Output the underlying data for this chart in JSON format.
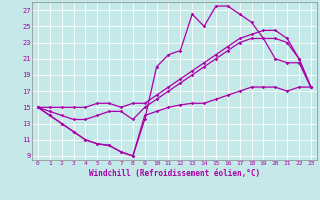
{
  "xlabel": "Windchill (Refroidissement éolien,°C)",
  "bg_color": "#c5e8e8",
  "line_color": "#aa00aa",
  "grid_color": "#ffffff",
  "xlim": [
    -0.5,
    23.5
  ],
  "ylim": [
    8.5,
    28.0
  ],
  "yticks": [
    9,
    11,
    13,
    15,
    17,
    19,
    21,
    23,
    25,
    27
  ],
  "xticks": [
    0,
    1,
    2,
    3,
    4,
    5,
    6,
    7,
    8,
    9,
    10,
    11,
    12,
    13,
    14,
    15,
    16,
    17,
    18,
    19,
    20,
    21,
    22,
    23
  ],
  "curves": [
    [
      15.0,
      14.0,
      13.0,
      12.0,
      11.0,
      10.5,
      10.3,
      9.5,
      9.0,
      14.0,
      14.5,
      15.0,
      15.3,
      15.5,
      15.5,
      16.0,
      16.5,
      17.0,
      17.5,
      17.5,
      17.5,
      17.0,
      17.5,
      17.5
    ],
    [
      15.0,
      14.0,
      13.0,
      12.0,
      11.0,
      10.5,
      10.3,
      9.5,
      9.0,
      13.5,
      20.0,
      21.5,
      22.0,
      26.5,
      25.0,
      27.5,
      27.5,
      26.5,
      25.5,
      23.5,
      21.0,
      20.5,
      20.5,
      17.5
    ],
    [
      15.0,
      14.5,
      14.0,
      13.5,
      13.5,
      14.0,
      14.5,
      14.5,
      13.5,
      15.0,
      16.0,
      17.0,
      18.0,
      19.0,
      20.0,
      21.0,
      22.0,
      23.0,
      23.5,
      23.5,
      23.5,
      23.0,
      21.0,
      17.5
    ],
    [
      15.0,
      15.0,
      15.0,
      15.0,
      15.0,
      15.5,
      15.5,
      15.0,
      15.5,
      15.5,
      16.5,
      17.5,
      18.5,
      19.5,
      20.5,
      21.5,
      22.5,
      23.5,
      24.0,
      24.5,
      24.5,
      23.5,
      21.0,
      17.5
    ]
  ]
}
